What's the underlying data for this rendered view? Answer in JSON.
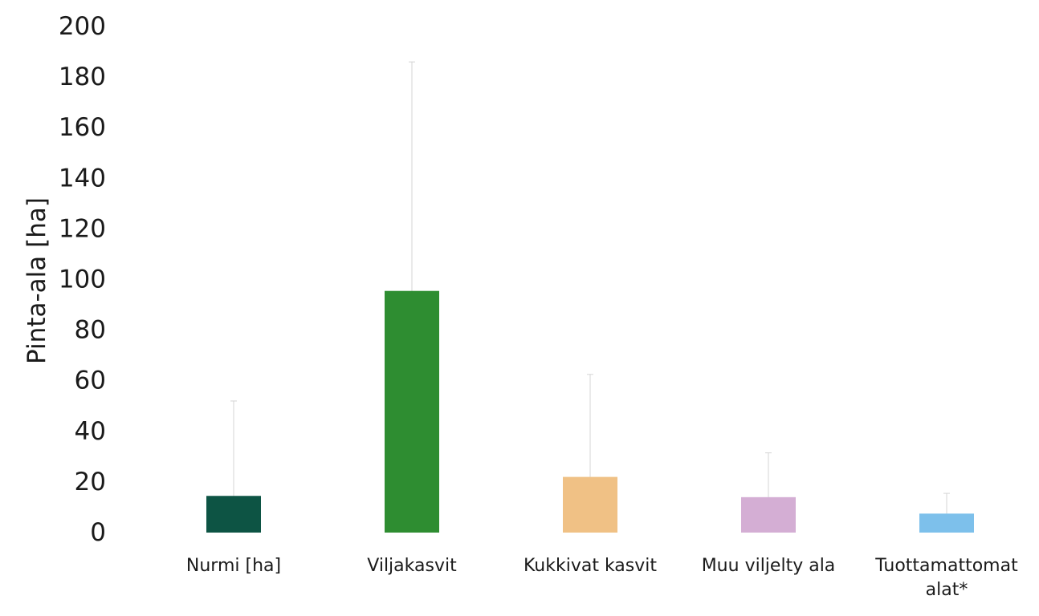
{
  "chart_data": {
    "type": "bar",
    "title": "",
    "xlabel": "",
    "ylabel": "Pinta-ala [ha]",
    "ylim": [
      0,
      200
    ],
    "yticks": [
      0,
      20,
      40,
      60,
      80,
      100,
      120,
      140,
      160,
      180,
      200
    ],
    "grid": false,
    "legend": "none",
    "categories": [
      {
        "label_lines": [
          "Nurmi [ha]"
        ]
      },
      {
        "label_lines": [
          "Viljakasvit"
        ]
      },
      {
        "label_lines": [
          "Kukkivat kasvit"
        ]
      },
      {
        "label_lines": [
          "Muu viljelty ala"
        ]
      },
      {
        "label_lines": [
          "Tuottamattomat",
          "alat*"
        ]
      }
    ],
    "values": [
      14.5,
      95.5,
      22,
      14,
      7.5
    ],
    "error_upper": [
      52,
      186,
      62.5,
      31.5,
      15.5
    ],
    "colors": [
      "#0d5444",
      "#2e8d31",
      "#f0c185",
      "#d4aed4",
      "#7dc0eb"
    ]
  }
}
